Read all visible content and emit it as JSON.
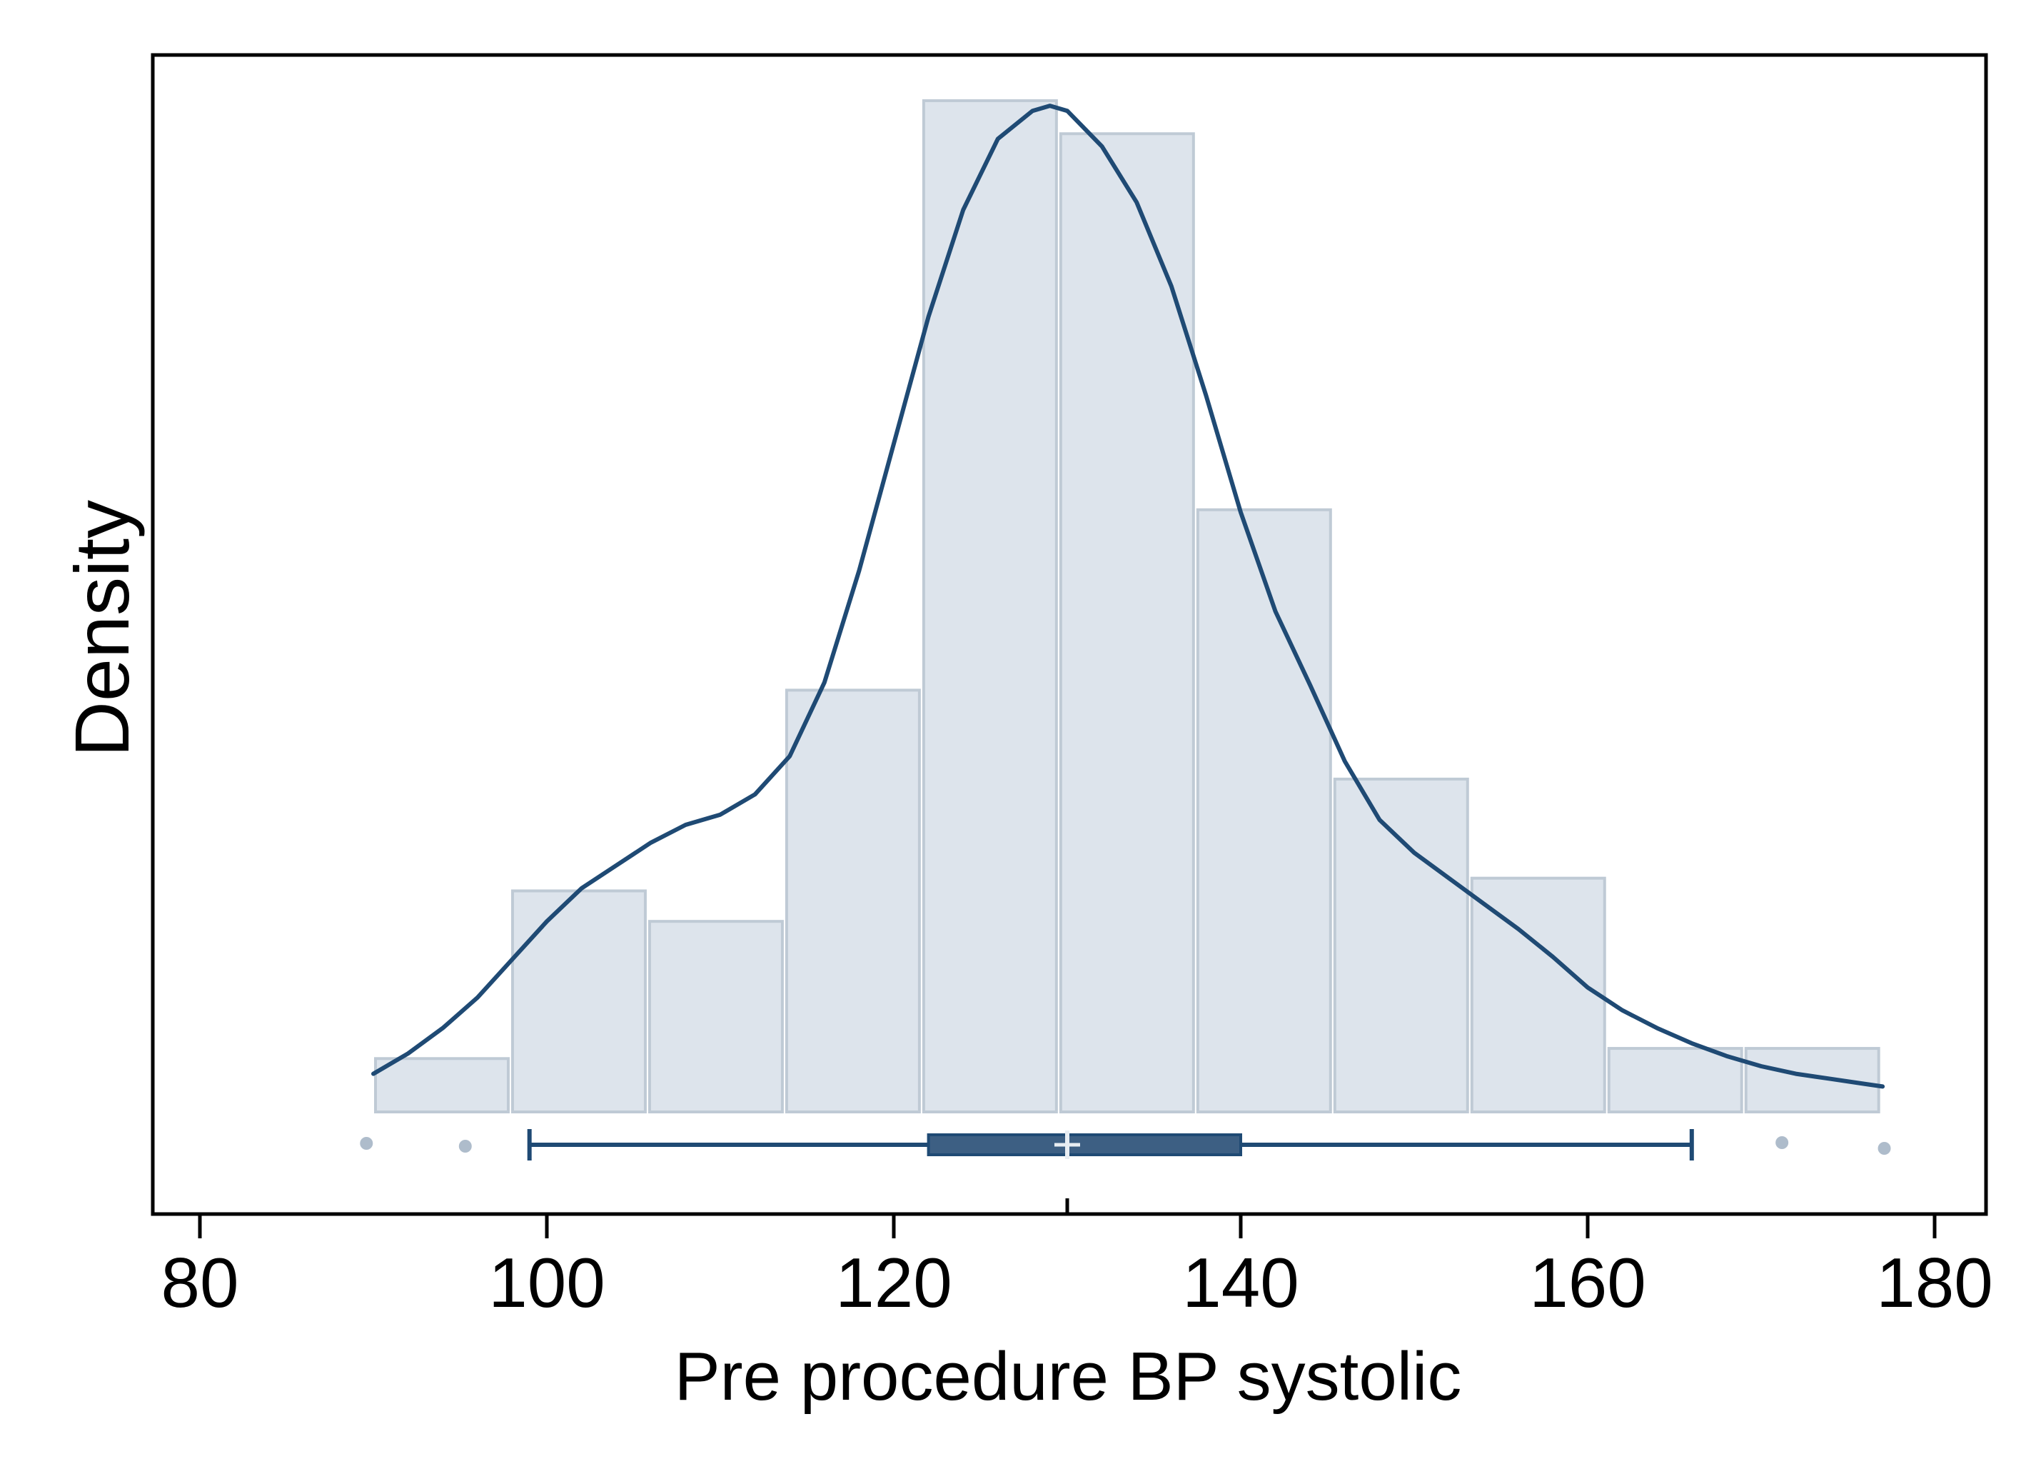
{
  "chart_data": {
    "type": "histogram",
    "xlabel": "Pre procedure BP systolic",
    "ylabel": "Density",
    "xlim": [
      77.5,
      182.5
    ],
    "xticks": [
      80,
      100,
      120,
      140,
      160,
      180
    ],
    "ylim": [
      -0.0045,
      0.0441
    ],
    "histogram": {
      "bin_edges": [
        90.0,
        97.9,
        105.8,
        113.7,
        121.6,
        129.5,
        137.4,
        145.3,
        153.2,
        161.1,
        169.0,
        176.9
      ],
      "density": [
        0.0021,
        0.0087,
        0.0075,
        0.0166,
        0.0398,
        0.0385,
        0.0237,
        0.0131,
        0.0092,
        0.0025,
        0.0025
      ]
    },
    "kde": {
      "x": [
        90,
        92,
        94,
        96,
        98,
        100,
        102,
        104,
        106,
        108,
        110,
        112,
        114,
        116,
        118,
        120,
        122,
        124,
        126,
        128,
        129,
        130,
        132,
        134,
        136,
        138,
        140,
        142,
        144,
        146,
        148,
        150,
        152,
        154,
        156,
        158,
        160,
        162,
        164,
        166,
        168,
        170,
        172,
        174,
        176,
        177
      ],
      "y": [
        0.0015,
        0.0023,
        0.0033,
        0.0045,
        0.006,
        0.0075,
        0.0088,
        0.0097,
        0.0106,
        0.0113,
        0.0117,
        0.0125,
        0.014,
        0.0169,
        0.0213,
        0.0263,
        0.0313,
        0.0355,
        0.0383,
        0.0394,
        0.0396,
        0.0394,
        0.038,
        0.0358,
        0.0325,
        0.0282,
        0.0236,
        0.0197,
        0.0168,
        0.0138,
        0.0115,
        0.0102,
        0.0092,
        0.0082,
        0.0072,
        0.0061,
        0.0049,
        0.004,
        0.0033,
        0.0027,
        0.0022,
        0.0018,
        0.0015,
        0.0013,
        0.0011,
        0.001
      ]
    },
    "boxplot": {
      "whisker_low": 99,
      "q1": 122,
      "median": 130,
      "q3": 140,
      "whisker_high": 166,
      "outliers": [
        89.6,
        95.3,
        171.2,
        177.1
      ]
    },
    "colors": {
      "bar_fill": "#dde4ec",
      "bar_stroke": "#bfcad5",
      "kde_line": "#1f4a74",
      "box_fill": "#3d5f83",
      "whisker": "#1f4a74",
      "outlier": "#aebccb",
      "axis": "#000000"
    }
  }
}
